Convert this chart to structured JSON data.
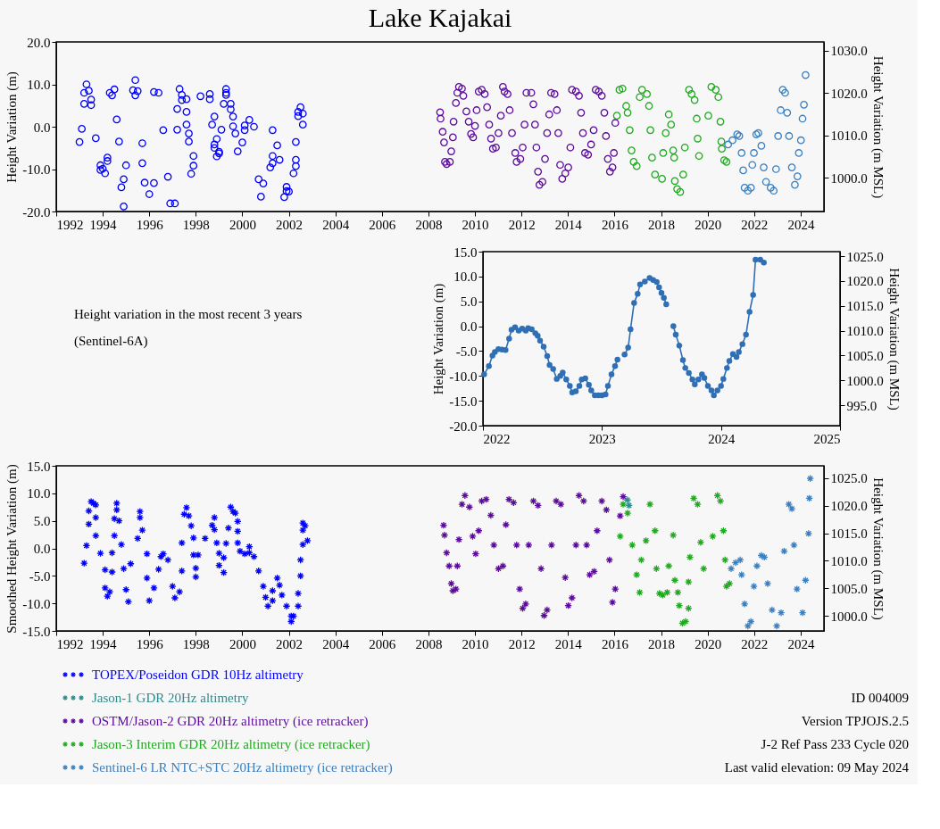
{
  "chart_data": [
    {
      "type": "scatter",
      "title": "Lake Kajakai",
      "ylabel": "Height Variation (m)",
      "y2label": "Height Variation (m MSL)",
      "marker": "circle",
      "xlim": [
        1992,
        2025
      ],
      "xticks": [
        1992,
        1994,
        1996,
        1998,
        2000,
        2002,
        2004,
        2006,
        2008,
        2010,
        2012,
        2014,
        2016,
        2018,
        2020,
        2022,
        2024
      ],
      "ylim": [
        -20,
        20
      ],
      "yticks": [
        {
          "value": -20,
          "label": "-20.0"
        },
        {
          "value": -10,
          "label": "-10.0"
        },
        {
          "value": 0,
          "label": "0.0"
        },
        {
          "value": 10,
          "label": "10.0"
        },
        {
          "value": 20,
          "label": "20.0"
        }
      ],
      "y2lim": [
        992,
        1032
      ],
      "y2ticks": [
        {
          "value": 1000,
          "label": "1000.0"
        },
        {
          "value": 1010,
          "label": "1010.0"
        },
        {
          "value": 1020,
          "label": "1020.0"
        },
        {
          "value": 1030,
          "label": "1030.0"
        }
      ],
      "series": [
        {
          "color": "#0000ff",
          "x": [
            1993.0,
            1993.1,
            1993.2,
            1993.2,
            1993.3,
            1993.4,
            1993.5,
            1993.5,
            1993.7,
            1993.9,
            1993.9,
            1994.0,
            1994.1,
            1994.2,
            1994.2,
            1994.3,
            1994.4,
            1994.5,
            1994.6,
            1994.7,
            1994.8,
            1994.9,
            1994.9,
            1995.0,
            1995.3,
            1995.4,
            1995.4,
            1995.5,
            1995.7,
            1995.7,
            1995.8,
            1996.0,
            1996.2,
            1996.2,
            1996.4,
            1996.6,
            1996.8,
            1996.9,
            1997.1,
            1997.2,
            1997.2,
            1997.3,
            1997.4,
            1997.4,
            1997.6,
            1997.6,
            1997.6,
            1997.7,
            1997.7,
            1997.8,
            1997.9,
            1997.9,
            1998.2,
            1998.6,
            1998.6,
            1998.7,
            1998.8,
            1998.8,
            1998.8,
            1998.9,
            1998.9,
            1999.0,
            1999.0,
            1999.1,
            1999.2,
            1999.3,
            1999.3,
            1999.3,
            1999.5,
            1999.5,
            1999.6,
            1999.6,
            1999.7,
            1999.8,
            2000.0,
            2000.1,
            2000.1,
            2000.3,
            2000.5,
            2000.7,
            2000.8,
            2000.9,
            2001.2,
            2001.3,
            2001.3,
            2001.3,
            2001.5,
            2001.6,
            2001.8,
            2001.9,
            2001.9,
            2002.0,
            2002.2,
            2002.3,
            2002.3,
            2002.3,
            2002.4,
            2002.4,
            2002.5,
            2002.6,
            2002.6
          ],
          "values": [
            -3.6,
            -0.5,
            5.4,
            8.0,
            10.0,
            8.5,
            6.4,
            5.1,
            -2.7,
            -9.1,
            -10.2,
            -9.9,
            -11.0,
            -8.1,
            -7.3,
            8.0,
            7.4,
            8.8,
            1.7,
            -3.5,
            -14.3,
            -12.4,
            -18.8,
            -9.1,
            8.6,
            11.0,
            7.4,
            8.4,
            -3.9,
            -8.6,
            -13.2,
            -15.9,
            -13.3,
            8.2,
            8.0,
            -0.8,
            -11.8,
            -18.1,
            -18.1,
            -0.7,
            4.2,
            8.9,
            7.5,
            6.3,
            3.5,
            6.5,
            0.5,
            -1.6,
            -3.5,
            -11.1,
            -9.2,
            -6.9,
            7.2,
            7.7,
            6.5,
            0.5,
            2.4,
            -5.0,
            -4.2,
            -2.9,
            -7.0,
            -5.9,
            -6.3,
            -0.7,
            5.4,
            7.5,
            8.0,
            8.9,
            5.4,
            4.1,
            2.4,
            0.1,
            -1.6,
            -5.8,
            -3.7,
            -0.8,
            0.3,
            1.6,
            0.0,
            -12.4,
            -16.5,
            -13.4,
            -9.6,
            -8.6,
            -6.9,
            -0.8,
            -4.4,
            -7.8,
            -16.6,
            -14.2,
            -15.2,
            -15.3,
            -11.0,
            -9.3,
            -7.8,
            -3.6,
            2.5,
            3.5,
            4.6,
            3.1,
            0.5
          ]
        },
        {
          "color": "#5c0a9c",
          "x": [
            2008.5,
            2008.52,
            2008.61,
            2008.67,
            2008.71,
            2008.78,
            2008.92,
            2008.98,
            2009.05,
            2009.08,
            2009.18,
            2009.24,
            2009.31,
            2009.44,
            2009.5,
            2009.63,
            2009.73,
            2009.83,
            2009.92,
            2010.0,
            2010.07,
            2010.16,
            2010.29,
            2010.42,
            2010.52,
            2010.61,
            2010.69,
            2010.77,
            2010.9,
            2011.01,
            2011.11,
            2011.2,
            2011.27,
            2011.4,
            2011.49,
            2011.59,
            2011.73,
            2011.79,
            2011.95,
            2012.05,
            2012.13,
            2012.21,
            2012.42,
            2012.51,
            2012.58,
            2012.64,
            2012.71,
            2012.77,
            2012.9,
            2013.01,
            2013.1,
            2013.19,
            2013.27,
            2013.42,
            2013.52,
            2013.58,
            2013.66,
            2013.75,
            2013.88,
            2014.01,
            2014.1,
            2014.17,
            2014.34,
            2014.47,
            2014.56,
            2014.64,
            2014.73,
            2014.86,
            2014.99,
            2015.1,
            2015.19,
            2015.32,
            2015.45,
            2015.56,
            2015.63,
            2015.71,
            2015.8,
            2015.91,
            2015.97,
            2016.03
          ],
          "values": [
            3.4,
            1.9,
            -1.2,
            -3.7,
            -8.3,
            -8.8,
            -8.3,
            -5.8,
            -2.5,
            1.2,
            5.6,
            8.0,
            9.4,
            9.0,
            7.3,
            3.6,
            1.2,
            -1.7,
            -2.5,
            0.2,
            3.9,
            8.3,
            8.7,
            7.7,
            4.6,
            0.5,
            -2.8,
            -5.2,
            -4.9,
            -1.5,
            2.6,
            9.4,
            8.3,
            7.7,
            3.9,
            -1.5,
            -6.2,
            -8.3,
            -7.6,
            -4.9,
            0.5,
            8.0,
            8.0,
            5.3,
            0.5,
            -4.9,
            -10.6,
            -13.7,
            -13.0,
            -7.6,
            -1.5,
            2.9,
            8.0,
            7.7,
            3.9,
            -1.5,
            -9.0,
            -12.3,
            -11.0,
            -9.6,
            -4.9,
            8.7,
            8.3,
            7.3,
            3.3,
            -1.5,
            -6.2,
            -6.6,
            -4.2,
            -0.8,
            8.7,
            8.3,
            7.3,
            3.3,
            -2.2,
            -7.6,
            -10.6,
            -9.6,
            -6.2,
            0.9
          ]
        },
        {
          "color": "#1faa1f",
          "x": [
            2016.1,
            2016.21,
            2016.34,
            2016.5,
            2016.56,
            2016.65,
            2016.73,
            2016.82,
            2016.95,
            2017.08,
            2017.18,
            2017.39,
            2017.48,
            2017.54,
            2017.61,
            2017.74,
            2018.04,
            2018.09,
            2018.2,
            2018.33,
            2018.43,
            2018.52,
            2018.56,
            2018.59,
            2018.69,
            2018.82,
            2018.95,
            2019.02,
            2019.2,
            2019.31,
            2019.44,
            2019.53,
            2019.57,
            2019.63,
            2020.03,
            2020.16,
            2020.35,
            2020.46,
            2020.55,
            2020.59,
            2020.61,
            2020.71,
            2020.81
          ],
          "values": [
            2.6,
            8.7,
            9.0,
            4.9,
            3.3,
            -0.8,
            -5.6,
            -8.3,
            -9.3,
            7.0,
            8.7,
            7.7,
            4.9,
            -0.8,
            -7.3,
            -11.3,
            -12.3,
            -6.2,
            -1.5,
            2.9,
            0.5,
            -5.6,
            -7.3,
            -12.8,
            -14.7,
            -15.4,
            -11.3,
            -4.9,
            8.7,
            7.7,
            6.3,
            1.9,
            -2.8,
            -6.9,
            2.6,
            9.4,
            8.7,
            7.0,
            1.2,
            -3.5,
            -5.2,
            -7.9,
            -8.3
          ]
        },
        {
          "color": "#3a80c0",
          "x": [
            2020.88,
            2021.07,
            2021.27,
            2021.36,
            2021.46,
            2021.53,
            2021.59,
            2021.73,
            2021.86,
            2021.92,
            2021.99,
            2022.09,
            2022.18,
            2022.31,
            2022.41,
            2022.51,
            2022.71,
            2022.84,
            2022.94,
            2023.03,
            2023.14,
            2023.23,
            2023.33,
            2023.42,
            2023.5,
            2023.62,
            2023.75,
            2023.86,
            2023.92,
            2024.01,
            2024.08,
            2024.14,
            2024.21
          ],
          "values": [
            -4.2,
            -3.2,
            -1.8,
            -2.2,
            -6.2,
            -10.3,
            -14.4,
            -15.1,
            -14.4,
            -9.0,
            -6.2,
            -1.8,
            -1.5,
            -4.5,
            -9.6,
            -13.0,
            -14.4,
            -15.1,
            -10.0,
            -2.2,
            3.9,
            8.7,
            8.0,
            3.3,
            -2.2,
            -9.6,
            -13.7,
            -11.7,
            -6.2,
            -3.2,
            1.9,
            5.2,
            12.2
          ]
        }
      ]
    },
    {
      "type": "line",
      "ylabel": "Height Variation (m)",
      "y2label": "Height Variation (m MSL)",
      "marker": "circle",
      "line_style": "solid",
      "annotations": [
        "Height variation in the most recent 3 years",
        "(Sentinel-6A)"
      ],
      "xlim": [
        2022,
        2025
      ],
      "xticks": [
        2022,
        2023,
        2024,
        2025
      ],
      "ylim": [
        -20,
        15
      ],
      "yticks": [
        {
          "value": -20,
          "label": "-20.0"
        },
        {
          "value": -15,
          "label": "-15.0"
        },
        {
          "value": -10,
          "label": "-10.0"
        },
        {
          "value": -5,
          "label": "-5.0"
        },
        {
          "value": 0,
          "label": "0.0"
        },
        {
          "value": 5,
          "label": "5.0"
        },
        {
          "value": 10,
          "label": "10.0"
        },
        {
          "value": 15,
          "label": "15.0"
        }
      ],
      "y2lim": [
        990.9,
        1025.9
      ],
      "y2ticks": [
        {
          "value": 995,
          "label": "995.0"
        },
        {
          "value": 1000,
          "label": "1000.0"
        },
        {
          "value": 1005,
          "label": "1005.0"
        },
        {
          "value": 1010,
          "label": "1010.0"
        },
        {
          "value": 1015,
          "label": "1015.0"
        },
        {
          "value": 1020,
          "label": "1020.0"
        },
        {
          "value": 1025,
          "label": "1025.0"
        }
      ],
      "series": [
        {
          "color": "#2f6fb5",
          "x": [
            2022.01,
            2022.05,
            2022.08,
            2022.1,
            2022.13,
            2022.16,
            2022.19,
            2022.22,
            2022.24,
            2022.27,
            2022.3,
            2022.33,
            2022.36,
            2022.38,
            2022.41,
            2022.44,
            2022.46,
            2022.48,
            2022.51,
            2022.54,
            2022.56,
            2022.59,
            2022.62,
            2022.65,
            2022.67,
            2022.7,
            2022.73,
            2022.75,
            2022.78,
            2022.81,
            2022.83,
            2022.86,
            2022.89,
            2022.91,
            2022.94,
            2022.97,
            2023.0,
            2023.03,
            2023.05,
            2023.08,
            2023.11,
            2023.13,
            2023.16,
            2023.19,
            2023.22,
            2023.24,
            2023.27,
            2023.3,
            2023.32,
            2023.36,
            2023.4,
            2023.43,
            2023.46,
            2023.48,
            2023.5,
            2023.52,
            2023.54,
            2023.57,
            2023.6,
            2023.62,
            2023.65,
            2023.68,
            2023.7,
            2023.73,
            2023.76,
            2023.78,
            2023.81,
            2023.84,
            2023.86,
            2023.89,
            2023.92,
            2023.94,
            2023.97,
            2024.0,
            2024.02,
            2024.05,
            2024.07,
            2024.1,
            2024.13,
            2024.15,
            2024.18,
            2024.21,
            2024.24,
            2024.27,
            2024.29,
            2024.33,
            2024.36
          ],
          "values": [
            -9.7,
            -8.0,
            -5.9,
            -5.2,
            -4.6,
            -4.7,
            -4.8,
            -2.5,
            -0.7,
            -0.2,
            -0.9,
            -0.5,
            -0.9,
            -0.4,
            -0.6,
            -1.4,
            -1.9,
            -2.9,
            -4.1,
            -6.0,
            -7.8,
            -8.6,
            -10.6,
            -10.0,
            -9.3,
            -10.7,
            -12.0,
            -13.3,
            -13.1,
            -12.0,
            -10.7,
            -10.5,
            -11.8,
            -12.9,
            -13.9,
            -13.9,
            -13.9,
            -13.7,
            -12.0,
            -9.7,
            -8.0,
            -6.7,
            null,
            -5.7,
            -4.3,
            -0.6,
            4.7,
            6.5,
            8.4,
            9.0,
            9.7,
            9.3,
            8.9,
            7.8,
            6.7,
            5.7,
            4.4,
            null,
            0.0,
            -1.7,
            -3.9,
            -6.8,
            -8.4,
            -9.4,
            -10.7,
            -11.7,
            -10.7,
            -9.7,
            -10.4,
            -12.0,
            -12.9,
            -13.9,
            -12.9,
            -12.0,
            -10.6,
            -8.4,
            -7.0,
            -5.6,
            -6.2,
            -5.2,
            -3.6,
            -1.7,
            2.9,
            6.3,
            13.4,
            13.4,
            12.8
          ]
        }
      ]
    },
    {
      "type": "scatter",
      "ylabel": "Smoothed Height Variation (m)",
      "y2label": "Height Variation (m MSL)",
      "marker": "cross",
      "legend": "bottom left",
      "annotations": [
        "ID 004009",
        "Version TPJOJS.2.5",
        "J-2 Ref Pass 233 Cycle 020",
        "Last valid elevation: 09 May 2024"
      ],
      "xlim": [
        1992,
        2025
      ],
      "xticks": [
        1992,
        1994,
        1996,
        1998,
        2000,
        2002,
        2004,
        2006,
        2008,
        2010,
        2012,
        2014,
        2016,
        2018,
        2020,
        2022,
        2024
      ],
      "ylim": [
        -15,
        15
      ],
      "yticks": [
        {
          "value": -15,
          "label": "-15.0"
        },
        {
          "value": -10,
          "label": "-10.0"
        },
        {
          "value": -5,
          "label": "-5.0"
        },
        {
          "value": 0,
          "label": "0.0"
        },
        {
          "value": 5,
          "label": "5.0"
        },
        {
          "value": 10,
          "label": "10.0"
        },
        {
          "value": 15,
          "label": "15.0"
        }
      ],
      "y2lim": [
        997.25,
        1027.25
      ],
      "y2ticks": [
        {
          "value": 1000,
          "label": "1000.0"
        },
        {
          "value": 1005,
          "label": "1005.0"
        },
        {
          "value": 1010,
          "label": "1010.0"
        },
        {
          "value": 1015,
          "label": "1015.0"
        },
        {
          "value": 1020,
          "label": "1020.0"
        },
        {
          "value": 1025,
          "label": "1025.0"
        }
      ],
      "series": [
        {
          "name": "TOPEX/Poseidon GDR 10Hz altimetry",
          "color": "#0000ff",
          "x": [
            1993.2,
            1993.3,
            1993.4,
            1993.4,
            1993.5,
            1993.6,
            1993.7,
            1993.7,
            1993.7,
            1993.9,
            1994.1,
            1994.1,
            1994.2,
            1994.3,
            1994.4,
            1994.4,
            1994.5,
            1994.5,
            1994.6,
            1994.6,
            1994.7,
            1994.8,
            1994.9,
            1995.0,
            1995.1,
            1995.2,
            1995.5,
            1995.6,
            1995.6,
            1995.7,
            1995.9,
            1995.9,
            1996.0,
            1996.2,
            1996.4,
            1996.5,
            1996.6,
            1996.8,
            1997.0,
            1997.1,
            1997.3,
            1997.4,
            1997.4,
            1997.5,
            1997.6,
            1997.7,
            1997.8,
            1997.9,
            1997.9,
            1998.0,
            1998.0,
            1998.1,
            1998.4,
            1998.7,
            1998.8,
            1998.8,
            1998.9,
            1999.0,
            1999.0,
            1999.2,
            1999.2,
            1999.3,
            1999.4,
            1999.5,
            1999.6,
            1999.7,
            1999.8,
            1999.8,
            1999.8,
            1999.9,
            2000.1,
            2000.3,
            2000.3,
            2000.5,
            2000.7,
            2000.9,
            2001.0,
            2001.1,
            2001.3,
            2001.3,
            2001.5,
            2001.6,
            2001.7,
            2001.9,
            2002.1,
            2002.1,
            2002.2,
            2002.4,
            2002.4,
            2002.5,
            2002.5,
            2002.6,
            2002.6,
            2002.6,
            2002.7,
            2002.8
          ],
          "values": [
            -2.7,
            0.5,
            4.4,
            6.8,
            8.5,
            8.2,
            7.9,
            5.6,
            2.3,
            -0.9,
            -3.9,
            -7.2,
            -8.7,
            -7.9,
            -4.3,
            -0.8,
            2.3,
            5.4,
            8.2,
            7.0,
            5.0,
            0.7,
            -3.7,
            -7.5,
            -9.7,
            -2.8,
            1.8,
            5.6,
            6.7,
            3.3,
            -1.0,
            -5.4,
            -9.5,
            -7.2,
            -3.8,
            -1.5,
            -1.0,
            -2.1,
            -6.9,
            -9.0,
            -7.9,
            -4.1,
            1.0,
            6.2,
            7.4,
            5.9,
            4.1,
            1.9,
            -1.2,
            -3.6,
            -5.2,
            -1.2,
            1.8,
            4.2,
            5.6,
            3.4,
            1.0,
            -0.9,
            -3.1,
            -4.4,
            -1.7,
            0.9,
            3.7,
            7.5,
            6.7,
            6.4,
            4.9,
            3.1,
            1.0,
            -0.5,
            -1.0,
            0.3,
            -0.8,
            -1.5,
            -4.1,
            -6.9,
            -8.9,
            -10.5,
            -9.5,
            -7.7,
            -5.4,
            -6.7,
            -8.5,
            -10.5,
            -12.3,
            -13.3,
            -12.3,
            -10.5,
            -8.2,
            -5.0,
            -2.1,
            0.7,
            3.3,
            4.6,
            4.1,
            1.4
          ]
        },
        {
          "name": "Jason-1 GDR 20Hz altimetry",
          "color": "#2e8b8b",
          "x": [
            2016.55,
            2016.62
          ],
          "values": [
            8.8,
            7.8
          ]
        },
        {
          "name": "OSTM/Jason-2 GDR 20Hz altimetry (ice retracker)",
          "color": "#5c0a9c",
          "x": [
            2008.65,
            2008.69,
            2008.78,
            2008.89,
            2008.98,
            2009.05,
            2009.18,
            2009.24,
            2009.31,
            2009.44,
            2009.57,
            2009.76,
            2009.9,
            2010.03,
            2010.16,
            2010.29,
            2010.48,
            2010.68,
            2010.81,
            2011.01,
            2011.2,
            2011.33,
            2011.46,
            2011.66,
            2011.79,
            2011.92,
            2012.05,
            2012.18,
            2012.31,
            2012.51,
            2012.71,
            2012.84,
            2012.97,
            2013.1,
            2013.29,
            2013.49,
            2013.69,
            2013.88,
            2014.01,
            2014.17,
            2014.34,
            2014.47,
            2014.67,
            2014.8,
            2014.93,
            2015.12,
            2015.25,
            2015.45,
            2015.65,
            2015.78,
            2015.91,
            2016.03,
            2016.24,
            2016.37
          ],
          "values": [
            4.2,
            2.4,
            -0.8,
            -3.2,
            -6.4,
            -7.7,
            -7.4,
            -3.2,
            1.6,
            8.0,
            9.6,
            7.5,
            2.2,
            -1.0,
            3.2,
            8.6,
            8.9,
            6.0,
            0.6,
            -3.7,
            -3.2,
            4.3,
            8.9,
            8.3,
            0.6,
            -7.4,
            -10.9,
            -10.1,
            0.6,
            8.6,
            7.8,
            -3.7,
            -12.2,
            -11.2,
            0.6,
            8.6,
            8.0,
            -5.3,
            -10.4,
            -9.0,
            0.6,
            9.6,
            8.6,
            0.6,
            -4.8,
            -4.2,
            3.2,
            8.6,
            7.0,
            -2.1,
            -9.8,
            -7.4,
            5.9,
            9.4
          ]
        },
        {
          "name": "Jason-3 Interim GDR 20Hz altimetry (ice retracker)",
          "color": "#1faa1f",
          "x": [
            2016.24,
            2016.37,
            2016.56,
            2016.76,
            2016.95,
            2017.08,
            2017.15,
            2017.35,
            2017.52,
            2017.74,
            2017.8,
            2017.93,
            2018.07,
            2018.26,
            2018.33,
            2018.52,
            2018.59,
            2018.72,
            2018.78,
            2018.92,
            2019.05,
            2019.18,
            2019.18,
            2019.24,
            2019.4,
            2019.57,
            2019.7,
            2019.83,
            2020.22,
            2020.42,
            2020.55,
            2020.68,
            2020.75,
            2020.81,
            2020.94
          ],
          "values": [
            2.2,
            8.0,
            6.4,
            0.6,
            -4.8,
            -8.0,
            -2.1,
            1.4,
            8.0,
            3.2,
            -3.7,
            -8.2,
            -8.5,
            -8.0,
            -3.2,
            2.4,
            -5.8,
            -8.0,
            -10.4,
            -13.6,
            -13.3,
            -10.9,
            -6.1,
            -1.6,
            9.1,
            8.0,
            1.1,
            -3.7,
            2.2,
            9.6,
            8.6,
            3.2,
            -2.1,
            -6.9,
            -6.4
          ]
        },
        {
          "name": "Sentinel-6 LR NTC+STC 20Hz altimetry (ice retracker)",
          "color": "#3a80c0",
          "x": [
            2021.01,
            2021.2,
            2021.4,
            2021.46,
            2021.59,
            2021.73,
            2021.86,
            2021.99,
            2022.12,
            2022.31,
            2022.44,
            2022.58,
            2022.77,
            2022.97,
            2023.16,
            2023.29,
            2023.49,
            2023.62,
            2023.71,
            2023.84,
            2024.08,
            2024.21,
            2024.34,
            2024.37,
            2024.41
          ],
          "values": [
            -3.7,
            -2.6,
            -2.1,
            -4.8,
            -10.1,
            -14.1,
            -13.3,
            -6.9,
            -3.2,
            -1.3,
            -1.6,
            -6.4,
            -11.2,
            -14.1,
            -11.7,
            -0.5,
            8.0,
            7.2,
            0.6,
            -7.4,
            -11.7,
            -5.8,
            2.7,
            9.1,
            12.7
          ]
        }
      ]
    }
  ]
}
